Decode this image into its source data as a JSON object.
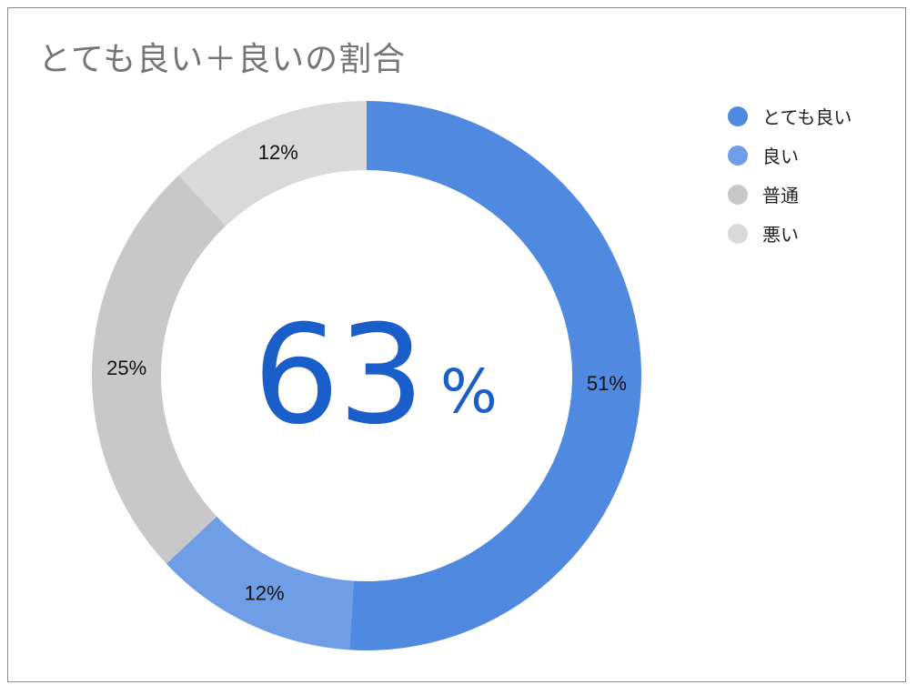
{
  "chart_data": {
    "type": "pie",
    "style": "donut",
    "title": "とても良い＋良いの割合",
    "categories": [
      "とても良い",
      "良い",
      "普通",
      "悪い"
    ],
    "values": [
      51,
      12,
      25,
      12
    ],
    "labels": [
      "51%",
      "12%",
      "25%",
      "12%"
    ],
    "colors": [
      "#5089e0",
      "#6f9de6",
      "#c8c8c8",
      "#d9d9d9"
    ],
    "center_value": "63",
    "center_unit": "%",
    "center_color": "#1a5fc9",
    "start_angle": "top",
    "direction": "clockwise",
    "legend_position": "top-right"
  }
}
